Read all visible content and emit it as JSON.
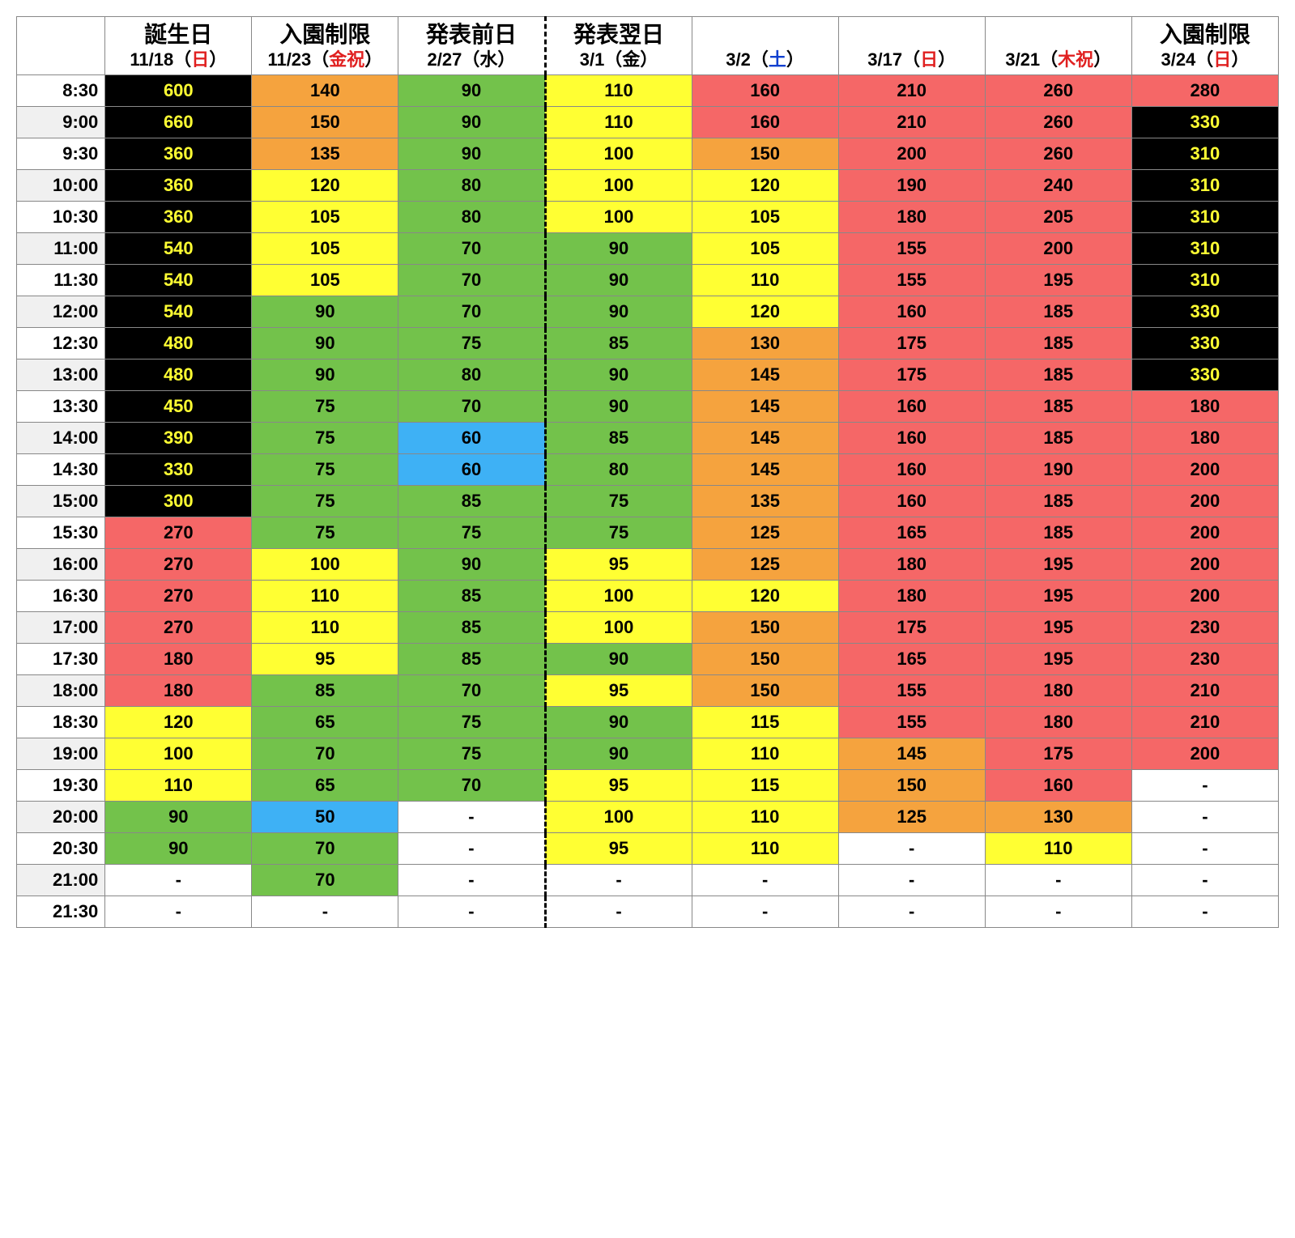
{
  "colors": {
    "black": "#000000",
    "black_text": "#ffff33",
    "red": "#f56767",
    "orange": "#f5a33e",
    "yellow": "#ffff33",
    "green": "#73c24b",
    "blue": "#3eb1f5",
    "white": "#ffffff"
  },
  "headers": [
    {
      "title": "誕生日",
      "date_pre": "11/18（",
      "day": "日",
      "date_post": "）",
      "day_color": "#e02020"
    },
    {
      "title": "入園制限",
      "date_pre": "11/23（",
      "day": "金祝",
      "date_post": "）",
      "day_color": "#e02020"
    },
    {
      "title": "発表前日",
      "date_pre": "2/27（",
      "day": "水",
      "date_post": "）",
      "day_color": "#000000"
    },
    {
      "title": "発表翌日",
      "date_pre": "3/1（",
      "day": "金",
      "date_post": "）",
      "day_color": "#000000"
    },
    {
      "title": "",
      "date_pre": "3/2（",
      "day": "土",
      "date_post": "）",
      "day_color": "#1040d0"
    },
    {
      "title": "",
      "date_pre": "3/17（",
      "day": "日",
      "date_post": "）",
      "day_color": "#e02020"
    },
    {
      "title": "",
      "date_pre": "3/21（",
      "day": "木祝",
      "date_post": "）",
      "day_color": "#e02020"
    },
    {
      "title": "入園制限",
      "date_pre": "3/24（",
      "day": "日",
      "date_post": "）",
      "day_color": "#e02020"
    }
  ],
  "times": [
    "8:30",
    "9:00",
    "9:30",
    "10:00",
    "10:30",
    "11:00",
    "11:30",
    "12:00",
    "12:30",
    "13:00",
    "13:30",
    "14:00",
    "14:30",
    "15:00",
    "15:30",
    "16:00",
    "16:30",
    "17:00",
    "17:30",
    "18:00",
    "18:30",
    "19:00",
    "19:30",
    "20:00",
    "20:30",
    "21:00",
    "21:30"
  ],
  "rows": [
    [
      [
        "600",
        "bk"
      ],
      [
        "140",
        "or"
      ],
      [
        "90",
        "gr"
      ],
      [
        "110",
        "yl"
      ],
      [
        "160",
        "rd"
      ],
      [
        "210",
        "rd"
      ],
      [
        "260",
        "rd"
      ],
      [
        "280",
        "rd"
      ]
    ],
    [
      [
        "660",
        "bk"
      ],
      [
        "150",
        "or"
      ],
      [
        "90",
        "gr"
      ],
      [
        "110",
        "yl"
      ],
      [
        "160",
        "rd"
      ],
      [
        "210",
        "rd"
      ],
      [
        "260",
        "rd"
      ],
      [
        "330",
        "bk"
      ]
    ],
    [
      [
        "360",
        "bk"
      ],
      [
        "135",
        "or"
      ],
      [
        "90",
        "gr"
      ],
      [
        "100",
        "yl"
      ],
      [
        "150",
        "or"
      ],
      [
        "200",
        "rd"
      ],
      [
        "260",
        "rd"
      ],
      [
        "310",
        "bk"
      ]
    ],
    [
      [
        "360",
        "bk"
      ],
      [
        "120",
        "yl"
      ],
      [
        "80",
        "gr"
      ],
      [
        "100",
        "yl"
      ],
      [
        "120",
        "yl"
      ],
      [
        "190",
        "rd"
      ],
      [
        "240",
        "rd"
      ],
      [
        "310",
        "bk"
      ]
    ],
    [
      [
        "360",
        "bk"
      ],
      [
        "105",
        "yl"
      ],
      [
        "80",
        "gr"
      ],
      [
        "100",
        "yl"
      ],
      [
        "105",
        "yl"
      ],
      [
        "180",
        "rd"
      ],
      [
        "205",
        "rd"
      ],
      [
        "310",
        "bk"
      ]
    ],
    [
      [
        "540",
        "bk"
      ],
      [
        "105",
        "yl"
      ],
      [
        "70",
        "gr"
      ],
      [
        "90",
        "gr"
      ],
      [
        "105",
        "yl"
      ],
      [
        "155",
        "rd"
      ],
      [
        "200",
        "rd"
      ],
      [
        "310",
        "bk"
      ]
    ],
    [
      [
        "540",
        "bk"
      ],
      [
        "105",
        "yl"
      ],
      [
        "70",
        "gr"
      ],
      [
        "90",
        "gr"
      ],
      [
        "110",
        "yl"
      ],
      [
        "155",
        "rd"
      ],
      [
        "195",
        "rd"
      ],
      [
        "310",
        "bk"
      ]
    ],
    [
      [
        "540",
        "bk"
      ],
      [
        "90",
        "gr"
      ],
      [
        "70",
        "gr"
      ],
      [
        "90",
        "gr"
      ],
      [
        "120",
        "yl"
      ],
      [
        "160",
        "rd"
      ],
      [
        "185",
        "rd"
      ],
      [
        "330",
        "bk"
      ]
    ],
    [
      [
        "480",
        "bk"
      ],
      [
        "90",
        "gr"
      ],
      [
        "75",
        "gr"
      ],
      [
        "85",
        "gr"
      ],
      [
        "130",
        "or"
      ],
      [
        "175",
        "rd"
      ],
      [
        "185",
        "rd"
      ],
      [
        "330",
        "bk"
      ]
    ],
    [
      [
        "480",
        "bk"
      ],
      [
        "90",
        "gr"
      ],
      [
        "80",
        "gr"
      ],
      [
        "90",
        "gr"
      ],
      [
        "145",
        "or"
      ],
      [
        "175",
        "rd"
      ],
      [
        "185",
        "rd"
      ],
      [
        "330",
        "bk"
      ]
    ],
    [
      [
        "450",
        "bk"
      ],
      [
        "75",
        "gr"
      ],
      [
        "70",
        "gr"
      ],
      [
        "90",
        "gr"
      ],
      [
        "145",
        "or"
      ],
      [
        "160",
        "rd"
      ],
      [
        "185",
        "rd"
      ],
      [
        "180",
        "rd"
      ]
    ],
    [
      [
        "390",
        "bk"
      ],
      [
        "75",
        "gr"
      ],
      [
        "60",
        "bl"
      ],
      [
        "85",
        "gr"
      ],
      [
        "145",
        "or"
      ],
      [
        "160",
        "rd"
      ],
      [
        "185",
        "rd"
      ],
      [
        "180",
        "rd"
      ]
    ],
    [
      [
        "330",
        "bk"
      ],
      [
        "75",
        "gr"
      ],
      [
        "60",
        "bl"
      ],
      [
        "80",
        "gr"
      ],
      [
        "145",
        "or"
      ],
      [
        "160",
        "rd"
      ],
      [
        "190",
        "rd"
      ],
      [
        "200",
        "rd"
      ]
    ],
    [
      [
        "300",
        "bk"
      ],
      [
        "75",
        "gr"
      ],
      [
        "85",
        "gr"
      ],
      [
        "75",
        "gr"
      ],
      [
        "135",
        "or"
      ],
      [
        "160",
        "rd"
      ],
      [
        "185",
        "rd"
      ],
      [
        "200",
        "rd"
      ]
    ],
    [
      [
        "270",
        "rd"
      ],
      [
        "75",
        "gr"
      ],
      [
        "75",
        "gr"
      ],
      [
        "75",
        "gr"
      ],
      [
        "125",
        "or"
      ],
      [
        "165",
        "rd"
      ],
      [
        "185",
        "rd"
      ],
      [
        "200",
        "rd"
      ]
    ],
    [
      [
        "270",
        "rd"
      ],
      [
        "100",
        "yl"
      ],
      [
        "90",
        "gr"
      ],
      [
        "95",
        "yl"
      ],
      [
        "125",
        "or"
      ],
      [
        "180",
        "rd"
      ],
      [
        "195",
        "rd"
      ],
      [
        "200",
        "rd"
      ]
    ],
    [
      [
        "270",
        "rd"
      ],
      [
        "110",
        "yl"
      ],
      [
        "85",
        "gr"
      ],
      [
        "100",
        "yl"
      ],
      [
        "120",
        "yl"
      ],
      [
        "180",
        "rd"
      ],
      [
        "195",
        "rd"
      ],
      [
        "200",
        "rd"
      ]
    ],
    [
      [
        "270",
        "rd"
      ],
      [
        "110",
        "yl"
      ],
      [
        "85",
        "gr"
      ],
      [
        "100",
        "yl"
      ],
      [
        "150",
        "or"
      ],
      [
        "175",
        "rd"
      ],
      [
        "195",
        "rd"
      ],
      [
        "230",
        "rd"
      ]
    ],
    [
      [
        "180",
        "rd"
      ],
      [
        "95",
        "yl"
      ],
      [
        "85",
        "gr"
      ],
      [
        "90",
        "gr"
      ],
      [
        "150",
        "or"
      ],
      [
        "165",
        "rd"
      ],
      [
        "195",
        "rd"
      ],
      [
        "230",
        "rd"
      ]
    ],
    [
      [
        "180",
        "rd"
      ],
      [
        "85",
        "gr"
      ],
      [
        "70",
        "gr"
      ],
      [
        "95",
        "yl"
      ],
      [
        "150",
        "or"
      ],
      [
        "155",
        "rd"
      ],
      [
        "180",
        "rd"
      ],
      [
        "210",
        "rd"
      ]
    ],
    [
      [
        "120",
        "yl"
      ],
      [
        "65",
        "gr"
      ],
      [
        "75",
        "gr"
      ],
      [
        "90",
        "gr"
      ],
      [
        "115",
        "yl"
      ],
      [
        "155",
        "rd"
      ],
      [
        "180",
        "rd"
      ],
      [
        "210",
        "rd"
      ]
    ],
    [
      [
        "100",
        "yl"
      ],
      [
        "70",
        "gr"
      ],
      [
        "75",
        "gr"
      ],
      [
        "90",
        "gr"
      ],
      [
        "110",
        "yl"
      ],
      [
        "145",
        "or"
      ],
      [
        "175",
        "rd"
      ],
      [
        "200",
        "rd"
      ]
    ],
    [
      [
        "110",
        "yl"
      ],
      [
        "65",
        "gr"
      ],
      [
        "70",
        "gr"
      ],
      [
        "95",
        "yl"
      ],
      [
        "115",
        "yl"
      ],
      [
        "150",
        "or"
      ],
      [
        "160",
        "rd"
      ],
      [
        "-",
        "wh"
      ]
    ],
    [
      [
        "90",
        "gr"
      ],
      [
        "50",
        "bl"
      ],
      [
        "-",
        "wh"
      ],
      [
        "100",
        "yl"
      ],
      [
        "110",
        "yl"
      ],
      [
        "125",
        "or"
      ],
      [
        "130",
        "or"
      ],
      [
        "-",
        "wh"
      ]
    ],
    [
      [
        "90",
        "gr"
      ],
      [
        "70",
        "gr"
      ],
      [
        "-",
        "wh"
      ],
      [
        "95",
        "yl"
      ],
      [
        "110",
        "yl"
      ],
      [
        "-",
        "wh"
      ],
      [
        "110",
        "yl"
      ],
      [
        "-",
        "wh"
      ]
    ],
    [
      [
        "-",
        "wh"
      ],
      [
        "70",
        "gr"
      ],
      [
        "-",
        "wh"
      ],
      [
        "-",
        "wh"
      ],
      [
        "-",
        "wh"
      ],
      [
        "-",
        "wh"
      ],
      [
        "-",
        "wh"
      ],
      [
        "-",
        "wh"
      ]
    ],
    [
      [
        "-",
        "wh"
      ],
      [
        "-",
        "wh"
      ],
      [
        "-",
        "wh"
      ],
      [
        "-",
        "wh"
      ],
      [
        "-",
        "wh"
      ],
      [
        "-",
        "wh"
      ],
      [
        "-",
        "wh"
      ],
      [
        "-",
        "wh"
      ]
    ]
  ]
}
